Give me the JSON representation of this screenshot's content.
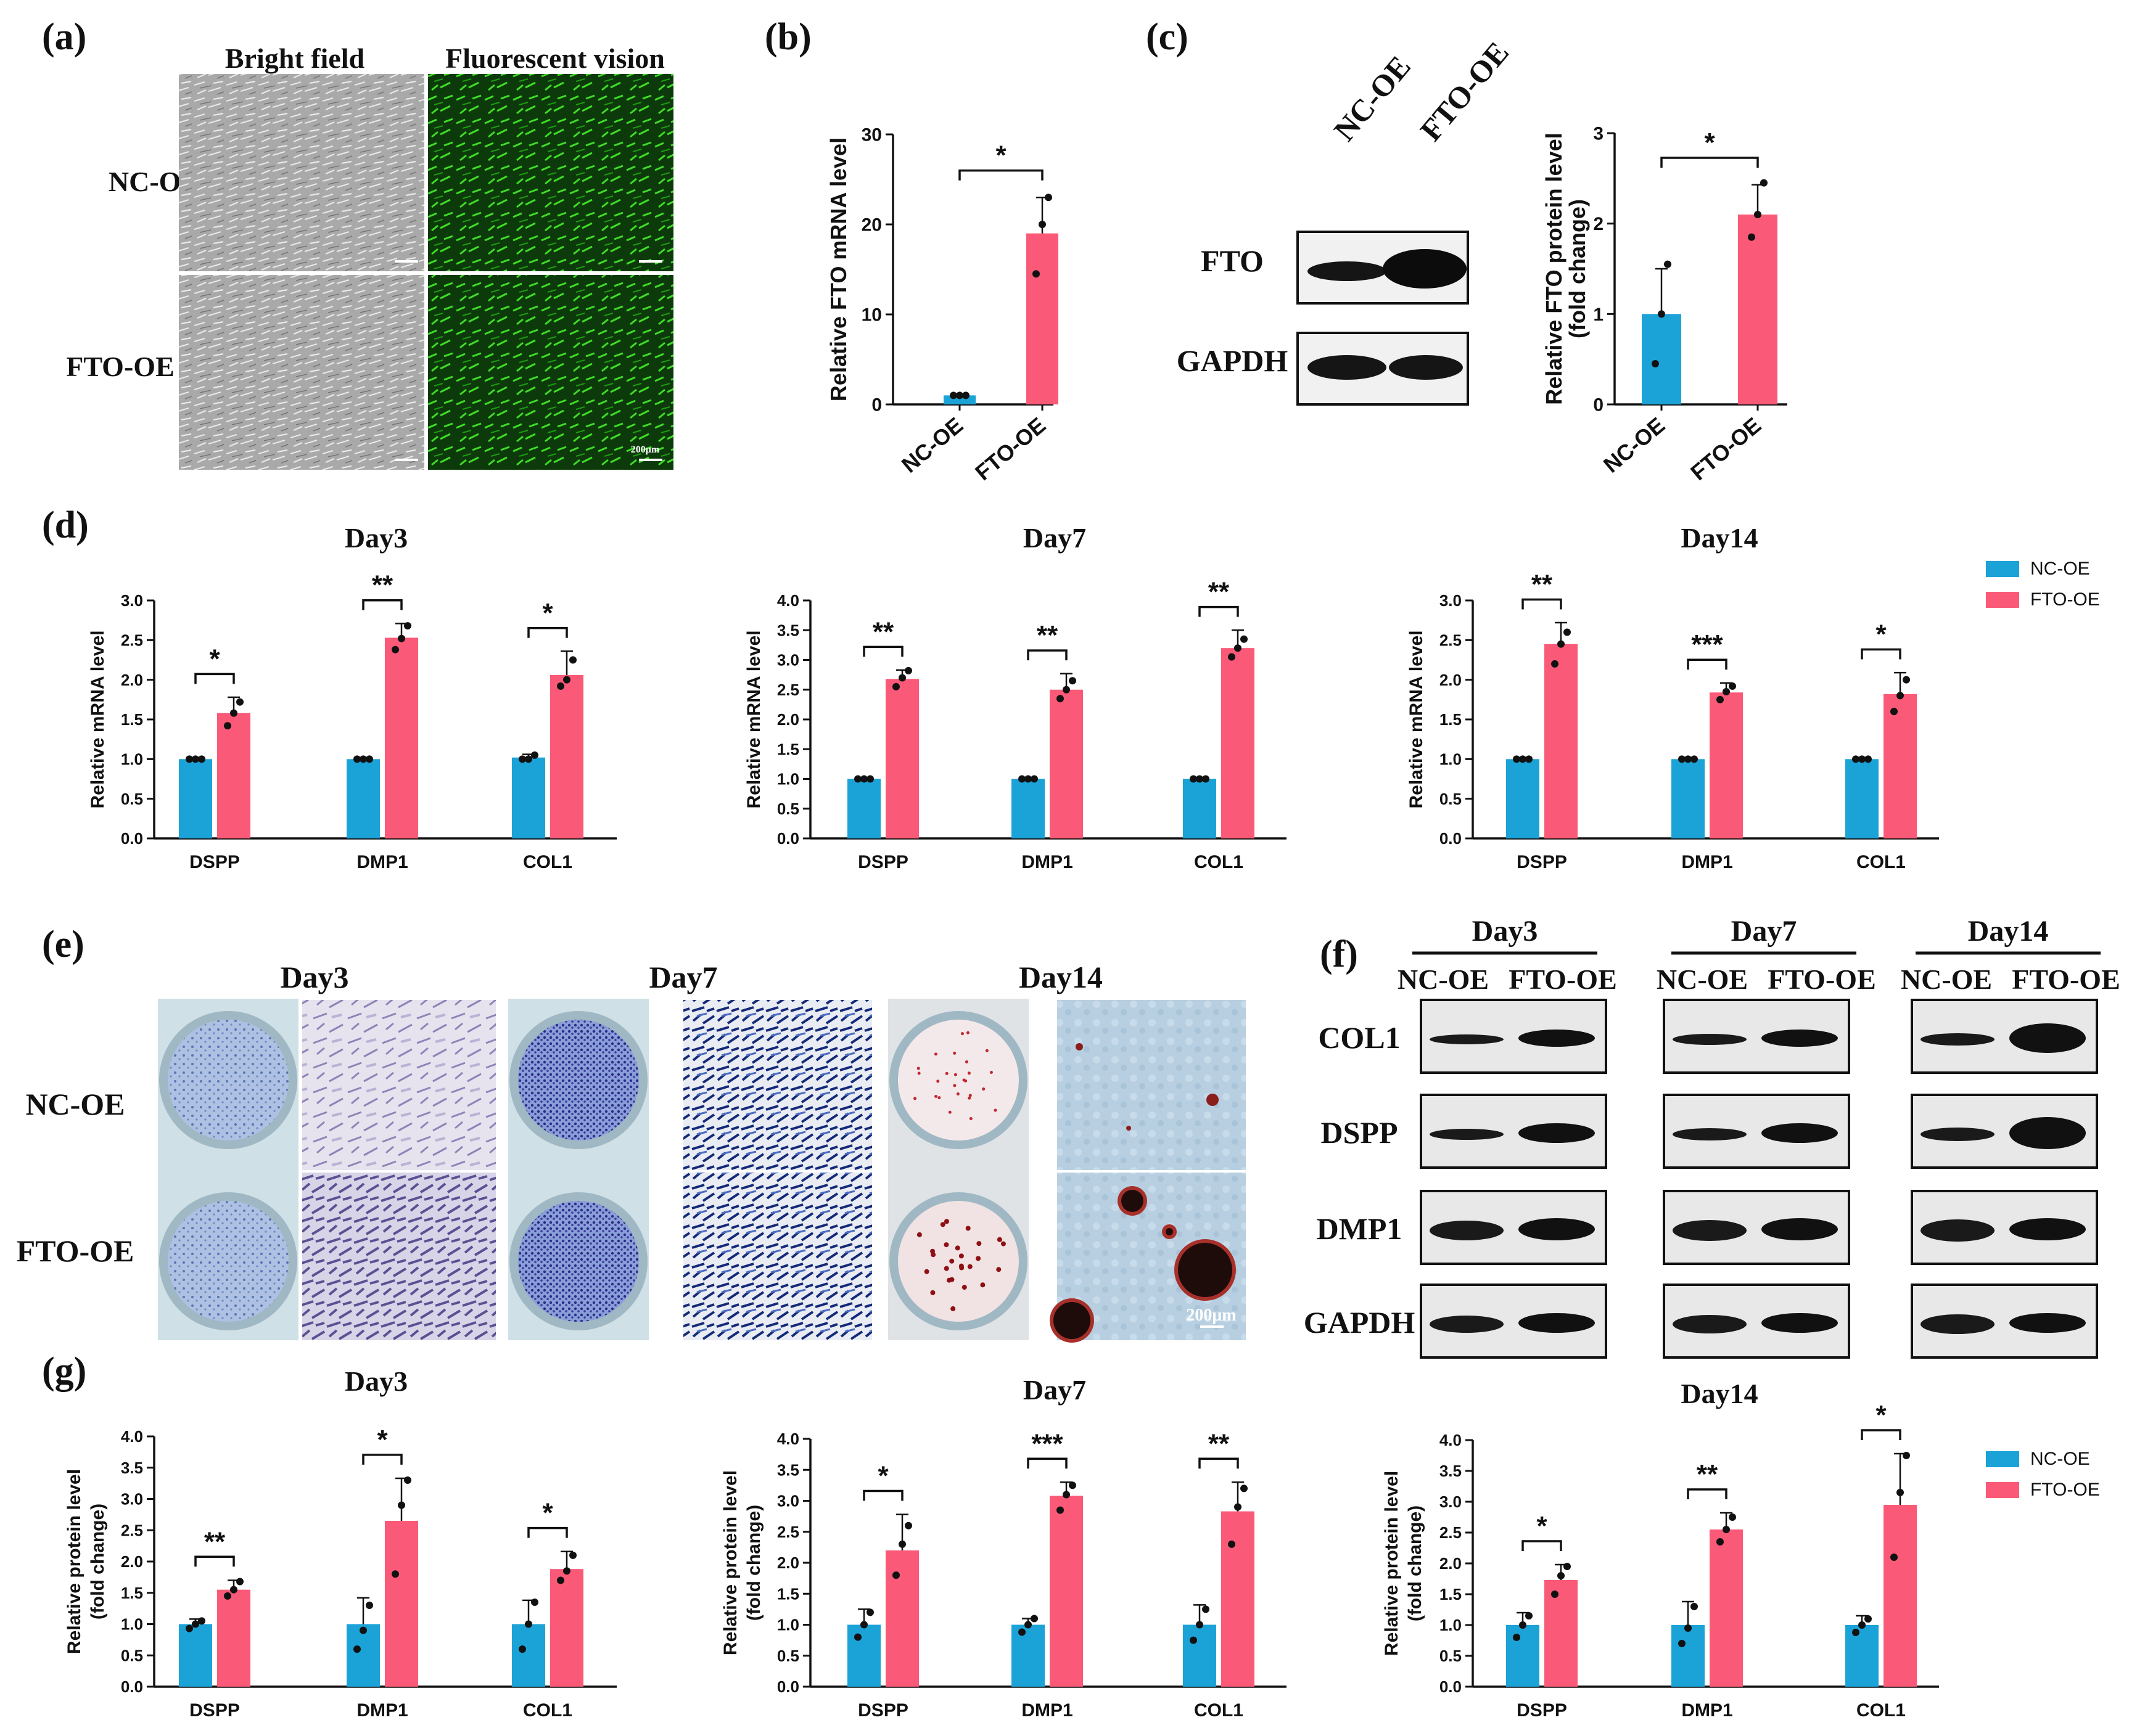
{
  "colors": {
    "nc": "#1ba3d8",
    "fto": "#fa5a78"
  },
  "legend": {
    "nc": "NC-OE",
    "fto": "FTO-OE"
  },
  "panel_a": {
    "label": "(a)",
    "col1": "Bright field",
    "col2": "Fluorescent vision",
    "row1": "NC-OE",
    "row2": "FTO-OE",
    "scale": "200μm"
  },
  "panel_b": {
    "label": "(b)"
  },
  "panel_c": {
    "label": "(c)",
    "lane1": "NC-OE",
    "lane2": "FTO-OE",
    "fto": "FTO",
    "gapdh": "GAPDH"
  },
  "panel_d": {
    "label": "(d)"
  },
  "panel_e": {
    "label": "(e)",
    "day3": "Day3",
    "day7": "Day7",
    "day14": "Day14",
    "row1": "NC-OE",
    "row2": "FTO-OE",
    "scale": "200μm"
  },
  "panel_f": {
    "label": "(f)",
    "days": [
      "Day3",
      "Day7",
      "Day14"
    ],
    "lane1": "NC-OE",
    "lane2": "FTO-OE",
    "proteins": [
      "COL1",
      "DSPP",
      "DMP1",
      "GAPDH"
    ]
  },
  "panel_g": {
    "label": "(g)"
  },
  "chart_data": [
    {
      "id": "b",
      "type": "bar",
      "title": "",
      "ylabel": "Relative FTO mRNA level",
      "ylim": [
        0,
        30
      ],
      "yticks": [
        "0",
        "10",
        "20",
        "30"
      ],
      "categories": [
        "NC-OE",
        "FTO-OE"
      ],
      "values": [
        1.0,
        19.0
      ],
      "errors": [
        0.1,
        4.0
      ],
      "dots": [
        [
          1.0,
          1.0,
          1.0
        ],
        [
          14.5,
          20.0,
          23.0
        ]
      ],
      "sig": [
        "*"
      ]
    },
    {
      "id": "c",
      "type": "bar",
      "title": "",
      "ylabel": "Relative FTO protein level (fold change)",
      "ylim": [
        0,
        3
      ],
      "yticks": [
        "0",
        "1",
        "2",
        "3"
      ],
      "categories": [
        "NC-OE",
        "FTO-OE"
      ],
      "values": [
        1.0,
        2.1
      ],
      "errors": [
        0.5,
        0.33
      ],
      "dots": [
        [
          0.45,
          1.0,
          1.55
        ],
        [
          1.85,
          2.1,
          2.45
        ]
      ],
      "sig": [
        "*"
      ]
    },
    {
      "id": "d1",
      "type": "bar",
      "title": "Day3",
      "ylabel": "Relative mRNA level",
      "ylim": [
        0,
        3
      ],
      "yticks": [
        "0.0",
        "0.5",
        "1.0",
        "1.5",
        "2.0",
        "2.5",
        "3.0"
      ],
      "categories": [
        "DSPP",
        "DMP1",
        "COL1"
      ],
      "series": [
        {
          "name": "NC-OE",
          "values": [
            1.0,
            1.0,
            1.02
          ],
          "errors": [
            0.01,
            0.01,
            0.04
          ],
          "dots": [
            [
              1.0,
              1.0,
              1.0
            ],
            [
              1.0,
              1.0,
              1.0
            ],
            [
              1.0,
              1.0,
              1.05
            ]
          ]
        },
        {
          "name": "FTO-OE",
          "values": [
            1.58,
            2.53,
            2.06
          ],
          "errors": [
            0.2,
            0.18,
            0.3
          ],
          "dots": [
            [
              1.42,
              1.58,
              1.72
            ],
            [
              2.38,
              2.52,
              2.68
            ],
            [
              1.92,
              2.0,
              2.25
            ]
          ]
        }
      ],
      "sig": [
        "*",
        "**",
        "*"
      ]
    },
    {
      "id": "d2",
      "type": "bar",
      "title": "Day7",
      "ylabel": "Relative mRNA level",
      "ylim": [
        0,
        4
      ],
      "yticks": [
        "0.0",
        "0.5",
        "1.0",
        "1.5",
        "2.0",
        "2.5",
        "3.0",
        "3.5",
        "4.0"
      ],
      "categories": [
        "DSPP",
        "DMP1",
        "COL1"
      ],
      "series": [
        {
          "name": "NC-OE",
          "values": [
            1.0,
            1.0,
            1.0
          ],
          "errors": [
            0.01,
            0.01,
            0.01
          ],
          "dots": [
            [
              1.0,
              1.0,
              1.0
            ],
            [
              1.0,
              1.0,
              1.0
            ],
            [
              1.0,
              1.0,
              1.0
            ]
          ]
        },
        {
          "name": "FTO-OE",
          "values": [
            2.68,
            2.5,
            3.2
          ],
          "errors": [
            0.15,
            0.27,
            0.3
          ],
          "dots": [
            [
              2.55,
              2.7,
              2.82
            ],
            [
              2.35,
              2.5,
              2.65
            ],
            [
              3.05,
              3.2,
              3.35
            ]
          ]
        }
      ],
      "sig": [
        "**",
        "**",
        "**"
      ]
    },
    {
      "id": "d3",
      "type": "bar",
      "title": "Day14",
      "ylabel": "Relative mRNA level",
      "ylim": [
        0,
        3
      ],
      "yticks": [
        "0.0",
        "0.5",
        "1.0",
        "1.5",
        "2.0",
        "2.5",
        "3.0"
      ],
      "categories": [
        "DSPP",
        "DMP1",
        "COL1"
      ],
      "series": [
        {
          "name": "NC-OE",
          "values": [
            1.0,
            1.0,
            1.0
          ],
          "errors": [
            0.01,
            0.01,
            0.01
          ],
          "dots": [
            [
              1.0,
              1.0,
              1.0
            ],
            [
              1.0,
              1.0,
              1.0
            ],
            [
              1.0,
              1.0,
              1.0
            ]
          ]
        },
        {
          "name": "FTO-OE",
          "values": [
            2.45,
            1.84,
            1.82
          ],
          "errors": [
            0.27,
            0.12,
            0.27
          ],
          "dots": [
            [
              2.2,
              2.45,
              2.6
            ],
            [
              1.75,
              1.85,
              1.92
            ],
            [
              1.6,
              1.8,
              2.0
            ]
          ]
        }
      ],
      "sig": [
        "**",
        "***",
        "*"
      ]
    },
    {
      "id": "g1",
      "type": "bar",
      "title": "Day3",
      "ylabel": "Relative protein level (fold change)",
      "ylim": [
        0,
        4
      ],
      "yticks": [
        "0.0",
        "0.5",
        "1.0",
        "1.5",
        "2.0",
        "2.5",
        "3.0",
        "3.5",
        "4.0"
      ],
      "categories": [
        "DSPP",
        "DMP1",
        "COL1"
      ],
      "series": [
        {
          "name": "NC-OE",
          "values": [
            1.0,
            1.0,
            1.0
          ],
          "errors": [
            0.08,
            0.42,
            0.38
          ],
          "dots": [
            [
              0.93,
              1.0,
              1.05
            ],
            [
              0.6,
              0.9,
              1.3
            ],
            [
              0.6,
              1.0,
              1.35
            ]
          ]
        },
        {
          "name": "FTO-OE",
          "values": [
            1.55,
            2.65,
            1.88
          ],
          "errors": [
            0.15,
            0.68,
            0.28
          ],
          "dots": [
            [
              1.45,
              1.55,
              1.68
            ],
            [
              1.8,
              2.9,
              3.3
            ],
            [
              1.7,
              1.85,
              2.1
            ]
          ]
        }
      ],
      "sig": [
        "**",
        "*",
        "*"
      ]
    },
    {
      "id": "g2",
      "type": "bar",
      "title": "Day7",
      "ylabel": "Relative protein level (fold change)",
      "ylim": [
        0,
        4
      ],
      "yticks": [
        "0.0",
        "0.5",
        "1.0",
        "1.5",
        "2.0",
        "2.5",
        "3.0",
        "3.5",
        "4.0"
      ],
      "categories": [
        "DSPP",
        "DMP1",
        "COL1"
      ],
      "series": [
        {
          "name": "NC-OE",
          "values": [
            1.0,
            1.0,
            1.0
          ],
          "errors": [
            0.25,
            0.1,
            0.32
          ],
          "dots": [
            [
              0.8,
              1.0,
              1.2
            ],
            [
              0.88,
              1.0,
              1.1
            ],
            [
              0.75,
              1.0,
              1.25
            ]
          ]
        },
        {
          "name": "FTO-OE",
          "values": [
            2.2,
            3.08,
            2.83
          ],
          "errors": [
            0.58,
            0.22,
            0.47
          ],
          "dots": [
            [
              1.8,
              2.3,
              2.6
            ],
            [
              2.85,
              3.1,
              3.25
            ],
            [
              2.3,
              2.9,
              3.2
            ]
          ]
        }
      ],
      "sig": [
        "*",
        "***",
        "**"
      ]
    },
    {
      "id": "g3",
      "type": "bar",
      "title": "Day14",
      "ylabel": "Relative protein level (fold change)",
      "ylim": [
        0,
        4
      ],
      "yticks": [
        "0.0",
        "0.5",
        "1.0",
        "1.5",
        "2.0",
        "2.5",
        "3.0",
        "3.5",
        "4.0"
      ],
      "categories": [
        "DSPP",
        "DMP1",
        "COL1"
      ],
      "series": [
        {
          "name": "NC-OE",
          "values": [
            1.0,
            1.0,
            1.0
          ],
          "errors": [
            0.2,
            0.38,
            0.15
          ],
          "dots": [
            [
              0.8,
              1.0,
              1.15
            ],
            [
              0.7,
              0.95,
              1.3
            ],
            [
              0.88,
              1.0,
              1.1
            ]
          ]
        },
        {
          "name": "FTO-OE",
          "values": [
            1.73,
            2.55,
            2.95
          ],
          "errors": [
            0.25,
            0.27,
            0.83
          ],
          "dots": [
            [
              1.5,
              1.8,
              1.95
            ],
            [
              2.35,
              2.55,
              2.75
            ],
            [
              2.1,
              3.15,
              3.75
            ]
          ]
        }
      ],
      "sig": [
        "*",
        "**",
        "*"
      ]
    }
  ]
}
